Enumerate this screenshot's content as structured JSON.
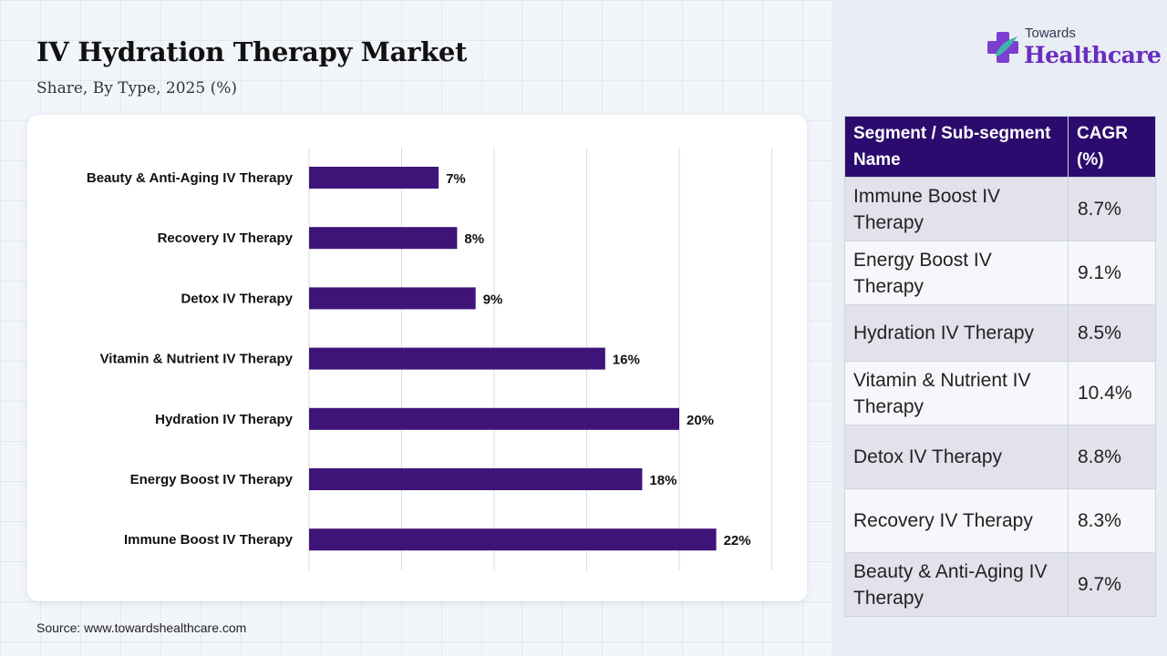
{
  "title": "IV Hydration Therapy Market",
  "subtitle": "Share, By Type, 2025 (%)",
  "logo": {
    "top": "Towards",
    "main": "Healthcare"
  },
  "source": "Source: www.towardshealthcare.com",
  "colors": {
    "bar": "#3f1479",
    "header": "#2c0b6e",
    "brand": "#6a2dbf"
  },
  "chart_data": {
    "type": "bar",
    "orientation": "horizontal",
    "categories": [
      "Beauty & Anti-Aging IV Therapy",
      "Recovery IV Therapy",
      "Detox IV Therapy",
      "Vitamin & Nutrient IV Therapy",
      "Hydration IV Therapy",
      "Energy Boost IV Therapy",
      "Immune Boost IV Therapy"
    ],
    "values": [
      7,
      8,
      9,
      16,
      20,
      18,
      22
    ],
    "value_labels": [
      "7%",
      "8%",
      "9%",
      "16%",
      "20%",
      "18%",
      "22%"
    ],
    "xlim": [
      0,
      25
    ],
    "grid": true,
    "title": "",
    "xlabel": "",
    "ylabel": ""
  },
  "table": {
    "headers": [
      "Segment / Sub-segment Name",
      "CAGR (%)"
    ],
    "rows": [
      {
        "segment": "Immune Boost IV Therapy",
        "cagr": "8.7%"
      },
      {
        "segment": "Energy Boost IV Therapy",
        "cagr": "9.1%"
      },
      {
        "segment": "Hydration IV Therapy",
        "cagr": "8.5%"
      },
      {
        "segment": "Vitamin & Nutrient IV Therapy",
        "cagr": "10.4%"
      },
      {
        "segment": "Detox IV Therapy",
        "cagr": "8.8%"
      },
      {
        "segment": "Recovery IV Therapy",
        "cagr": "8.3%"
      },
      {
        "segment": "Beauty & Anti-Aging IV Therapy",
        "cagr": "9.7%"
      }
    ]
  }
}
